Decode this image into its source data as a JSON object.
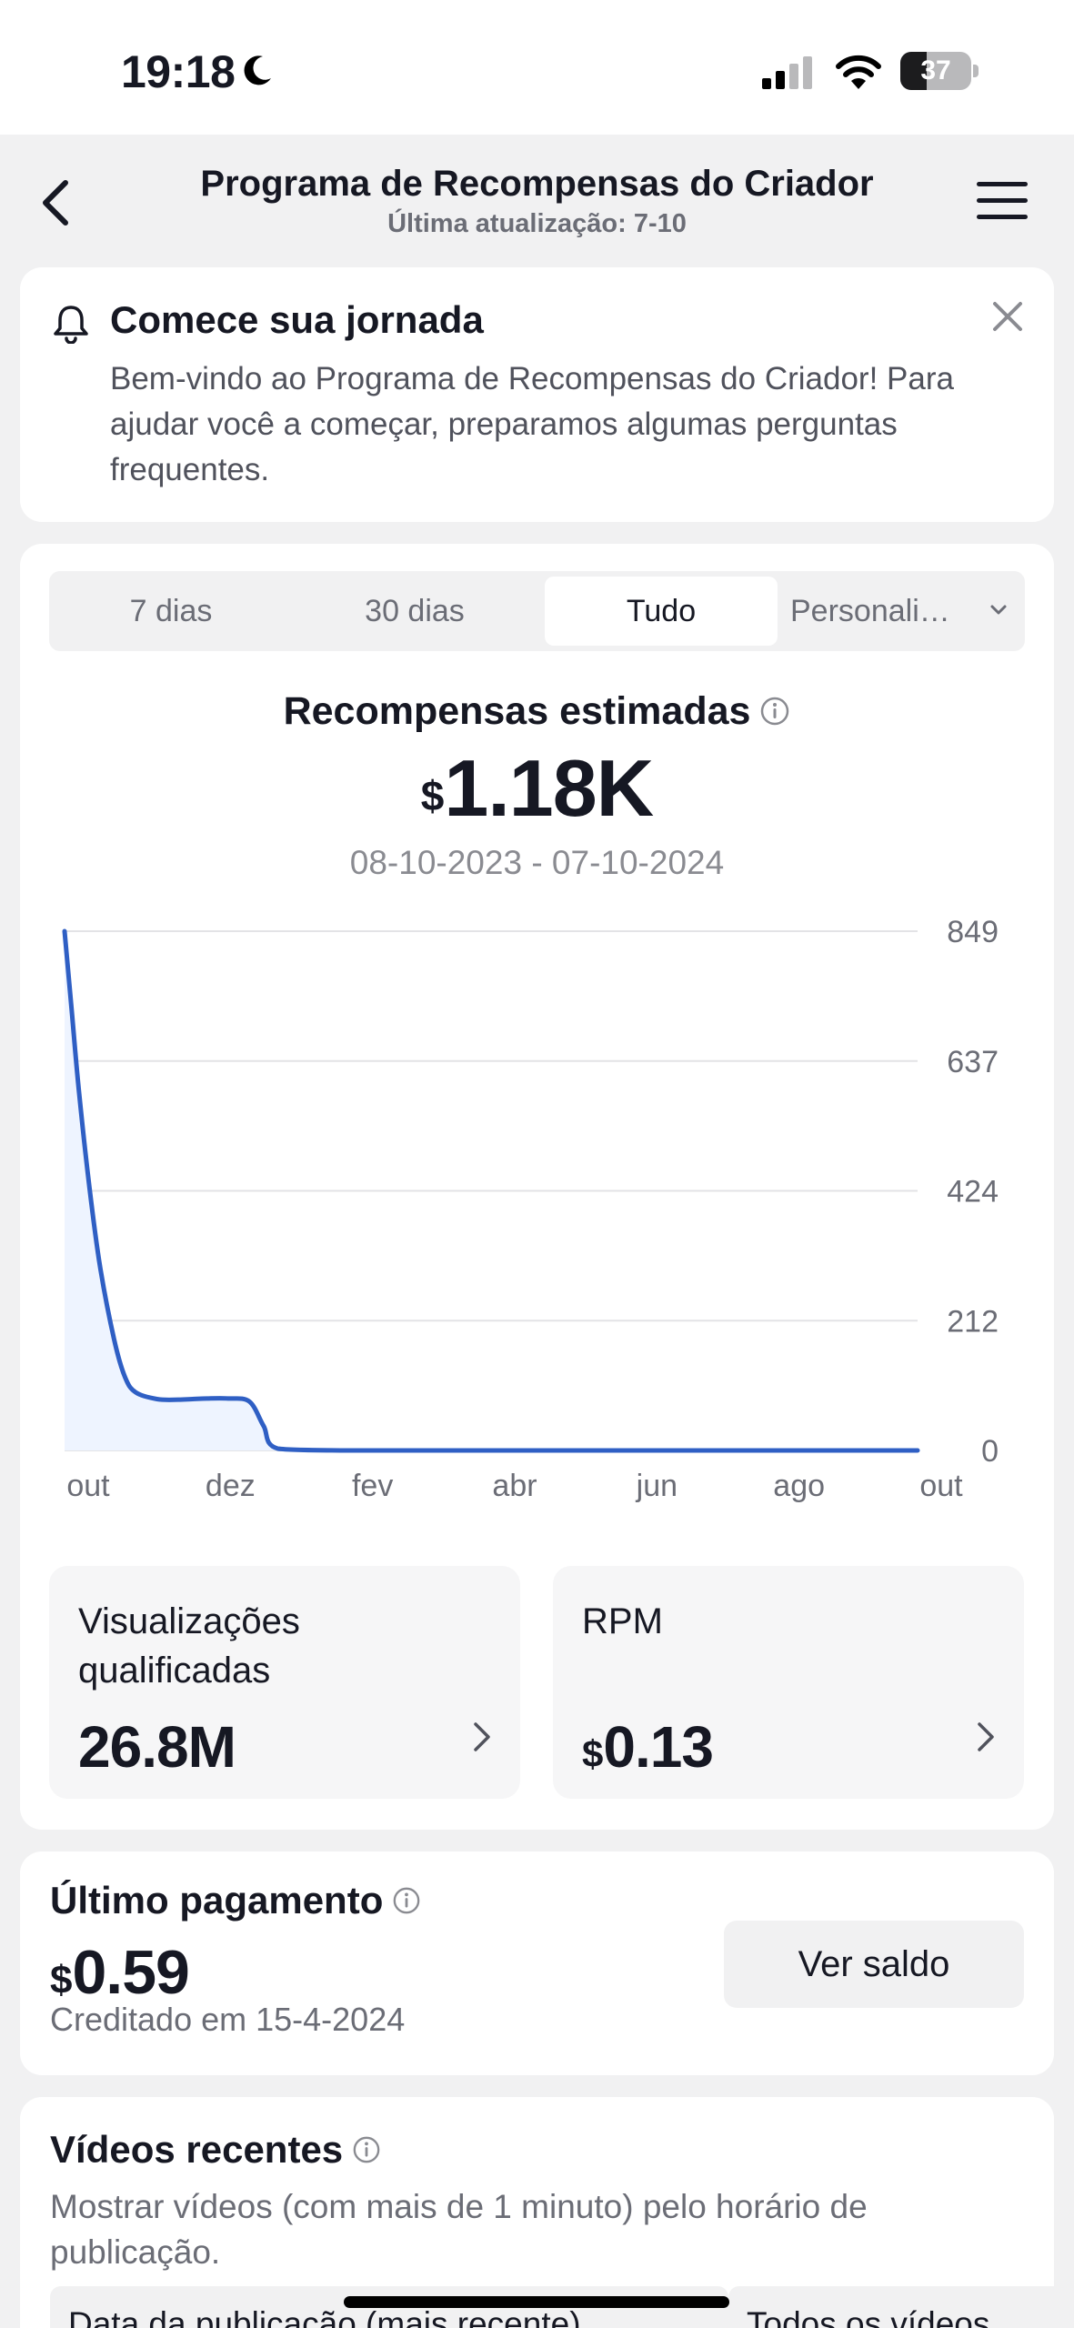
{
  "status_bar": {
    "time": "19:18",
    "battery_level": "37",
    "icons": [
      "moon-icon",
      "signal-icon",
      "wifi-icon",
      "battery-icon"
    ]
  },
  "header": {
    "title": "Programa de Recompensas do Criador",
    "subtitle": "Última atualização: 7-10",
    "icons": [
      "back-arrow-icon",
      "hamburger-menu-icon"
    ]
  },
  "banner": {
    "title": "Comece sua jornada",
    "text": "Bem-vindo ao Programa de Recompensas do Criador! Para ajudar você a começar, preparamos algumas perguntas frequentes.",
    "icons": [
      "bell-icon",
      "close-icon"
    ]
  },
  "range_tabs": {
    "items": [
      "7 dias",
      "30 dias",
      "Tudo",
      "Personali…"
    ],
    "active": "Tudo"
  },
  "estimated": {
    "title": "Recompensas estimadas",
    "currency": "$",
    "value": "1.18K",
    "range": "08-10-2023 - 07-10-2024"
  },
  "chart_data": {
    "type": "area",
    "x_ticks": [
      "out",
      "dez",
      "fev",
      "abr",
      "jun",
      "ago",
      "out"
    ],
    "y_ticks": [
      "849",
      "637",
      "424",
      "212",
      "0"
    ],
    "ylim": [
      0,
      849
    ],
    "grid": true,
    "line_color": "#2f5fc4",
    "fill_color": "#eef4ff",
    "x": [
      0,
      0.1,
      0.2,
      0.35,
      0.5,
      0.7,
      0.85,
      1.0,
      1.3,
      1.6,
      1.8,
      2.0,
      2.3,
      2.6,
      2.8,
      3.0,
      4.0,
      5.0,
      6.0,
      7.0,
      8.0,
      9.0,
      10.0,
      11.0,
      12.0
    ],
    "values": [
      849,
      720,
      590,
      430,
      300,
      180,
      120,
      95,
      84,
      83,
      84,
      85,
      85,
      80,
      40,
      3,
      0,
      0,
      0,
      0,
      0,
      0,
      0,
      0,
      0
    ]
  },
  "qualified_views": {
    "label": "Visualizações qualificadas",
    "value": "26.8M"
  },
  "rpm": {
    "label": "RPM",
    "currency": "$",
    "value": "0.13"
  },
  "last_payment": {
    "title": "Último pagamento",
    "currency": "$",
    "value": "0.59",
    "credited": "Creditado em 15-4-2024",
    "button": "Ver saldo"
  },
  "recent_videos": {
    "title": "Vídeos recentes",
    "description": "Mostrar vídeos (com mais de 1 minuto) pelo horário de publicação.",
    "sort_filter": "Data da publicação (mais recente)",
    "video_filter": "Todos os vídeos"
  }
}
